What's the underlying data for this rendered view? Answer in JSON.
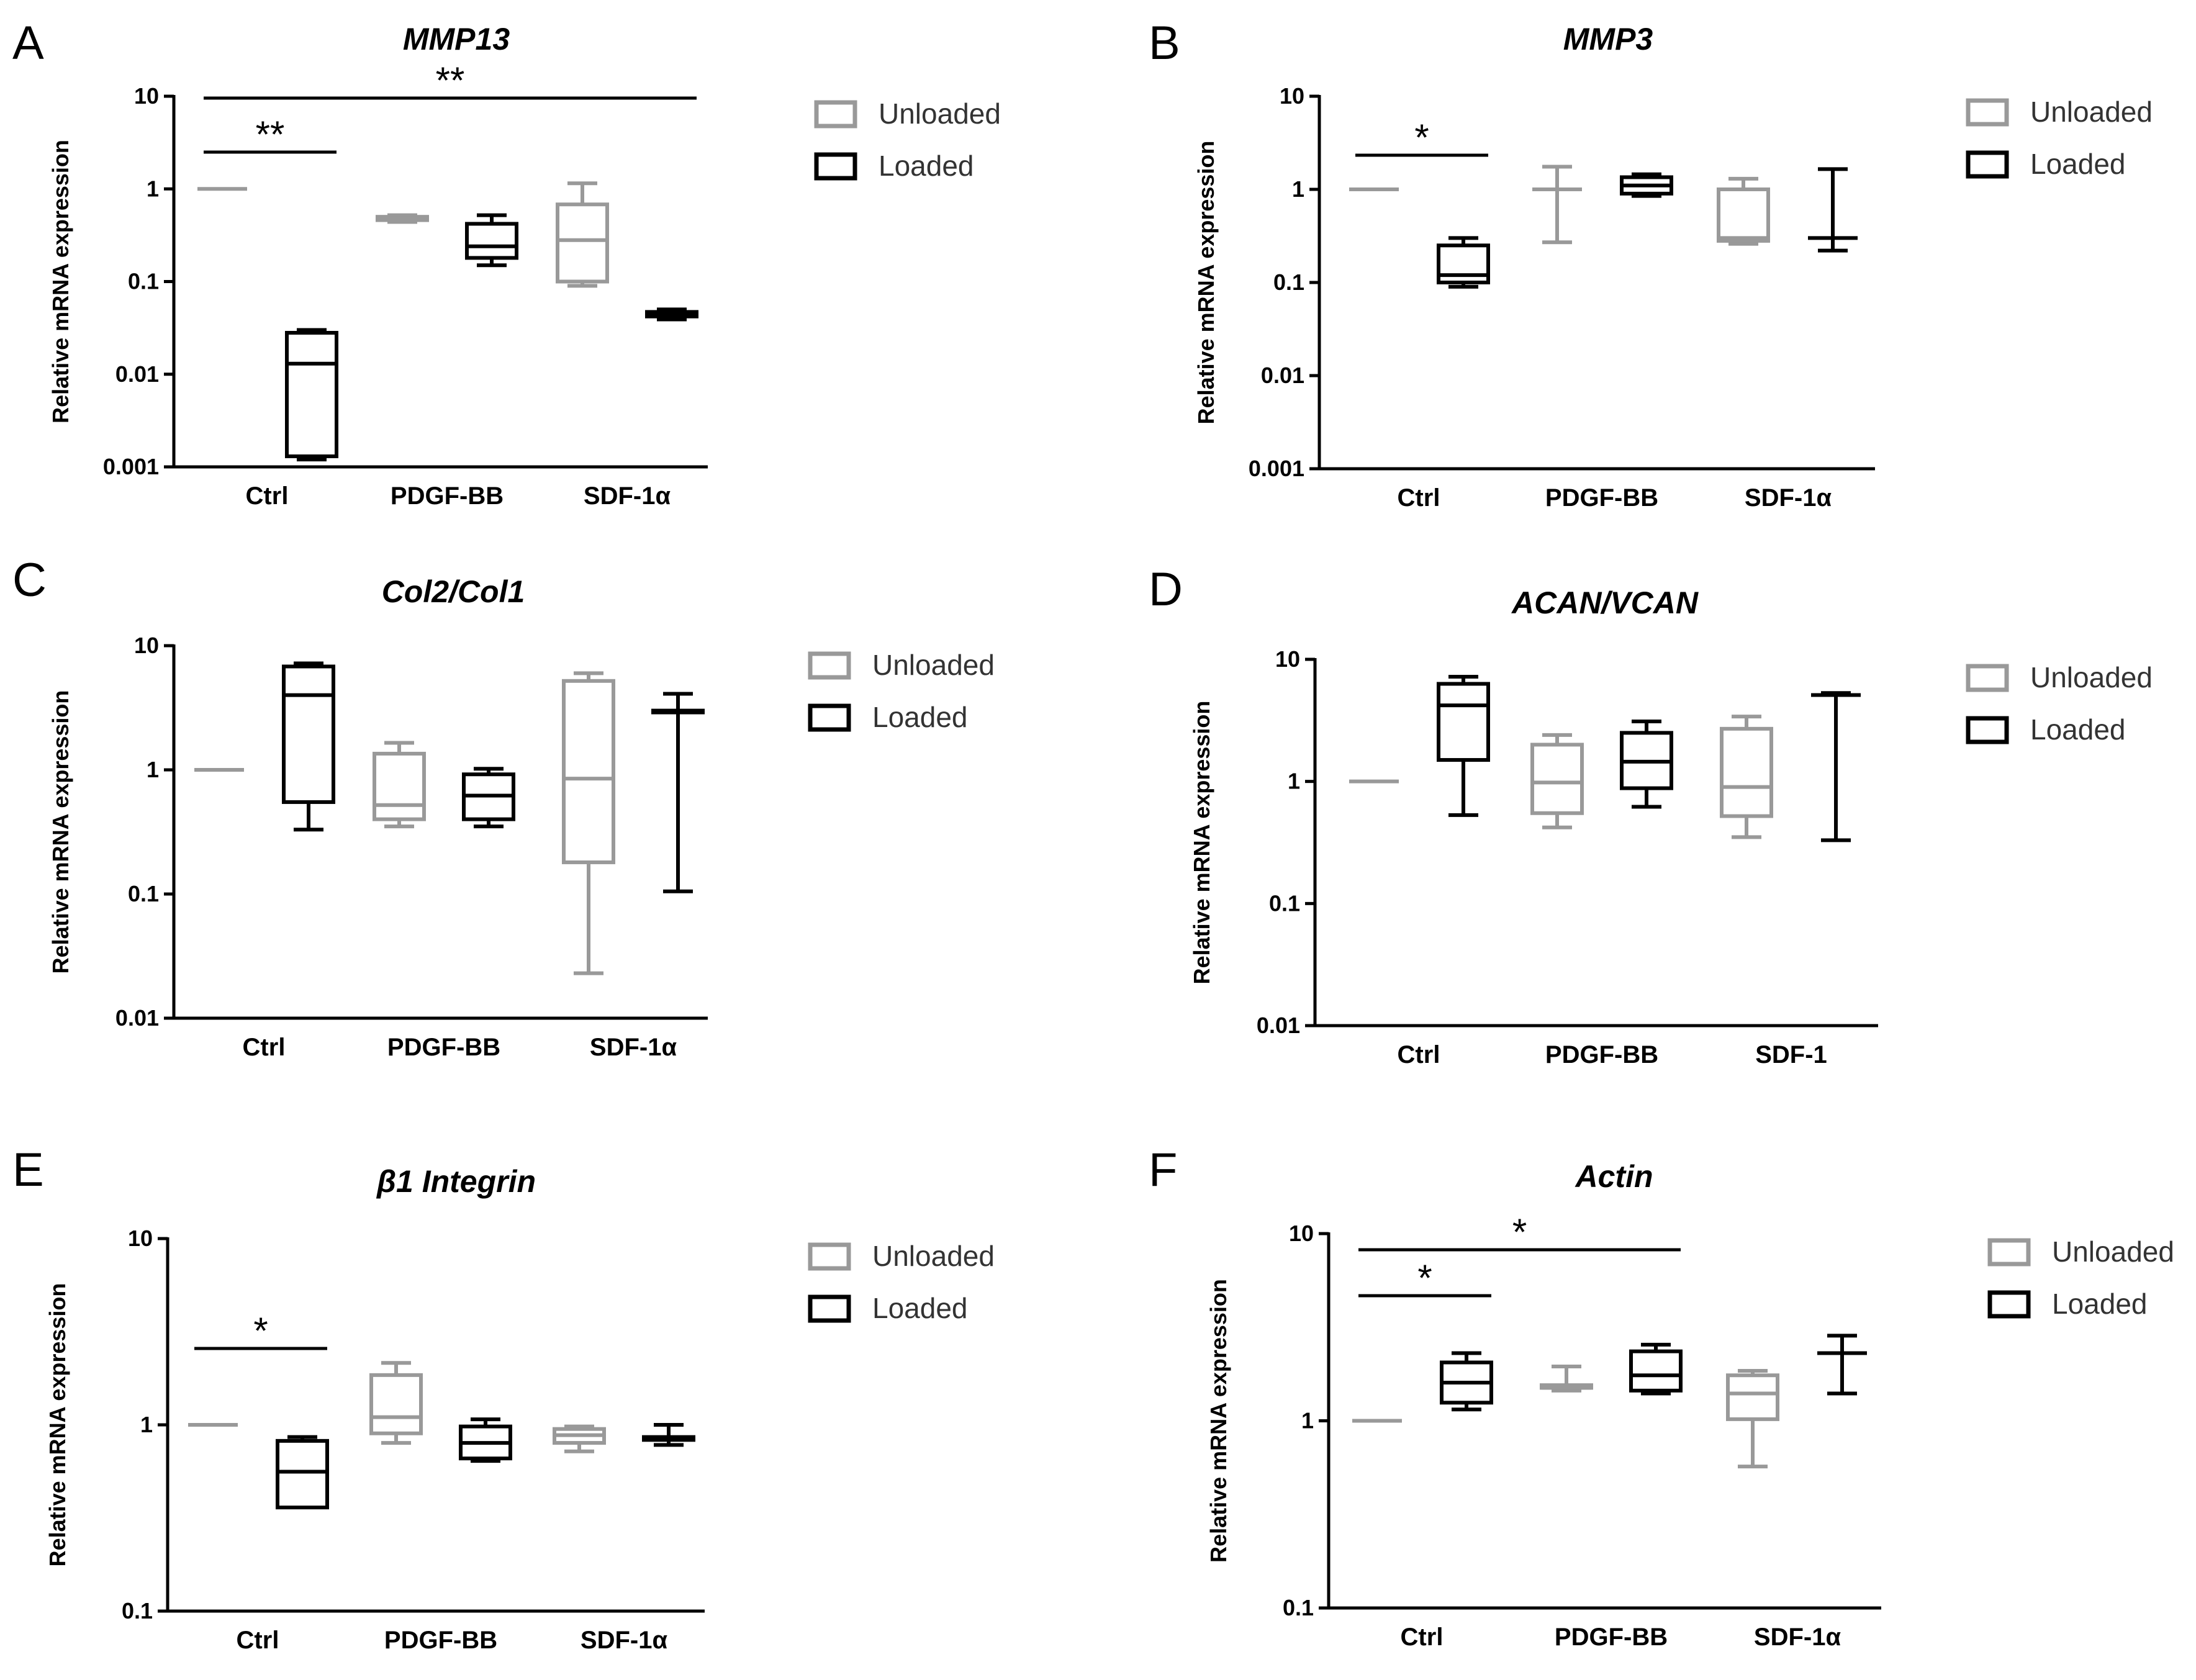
{
  "figure": {
    "colors": {
      "unloaded": "#999999",
      "loaded": "#000000",
      "axis": "#000000"
    },
    "legend": {
      "unloaded": "Unloaded",
      "loaded": "Loaded"
    }
  },
  "chart_data": [
    {
      "panel": "A",
      "type": "box",
      "title": "MMP13",
      "ylabel": "Relative mRNA expression",
      "yscale": "log",
      "ylim": [
        0.001,
        10
      ],
      "yticks": [
        "0.001",
        "0.01",
        "0.1",
        "1",
        "10"
      ],
      "categories": [
        "Ctrl",
        "PDGF-BB",
        "SDF-1α"
      ],
      "series": [
        {
          "name": "Unloaded",
          "boxes": [
            [
              1,
              1,
              1,
              1,
              1
            ],
            [
              0.44,
              0.46,
              0.48,
              0.5,
              0.52
            ],
            [
              0.09,
              0.1,
              0.28,
              0.68,
              1.15
            ]
          ]
        },
        {
          "name": "Loaded",
          "boxes": [
            [
              0.0012,
              0.0013,
              0.013,
              0.028,
              0.03
            ],
            [
              0.15,
              0.18,
              0.24,
              0.42,
              0.52
            ],
            [
              0.039,
              0.042,
              0.045,
              0.047,
              0.05
            ]
          ]
        }
      ],
      "significance": [
        {
          "label": "**",
          "from": "Ctrl",
          "to": "Ctrl",
          "level": 1
        },
        {
          "label": "**",
          "from": "Ctrl",
          "to": "SDF-1α",
          "level": 2
        }
      ]
    },
    {
      "panel": "B",
      "type": "box",
      "title": "MMP3",
      "ylabel": "Relative mRNA expression",
      "yscale": "log",
      "ylim": [
        0.001,
        10
      ],
      "yticks": [
        "0.001",
        "0.01",
        "0.1",
        "1",
        "10"
      ],
      "categories": [
        "Ctrl",
        "PDGF-BB",
        "SDF-1α"
      ],
      "series": [
        {
          "name": "Unloaded",
          "boxes": [
            [
              1,
              1,
              1,
              1,
              1
            ],
            [
              0.27,
              1,
              1,
              1,
              1.75
            ],
            [
              0.26,
              0.28,
              0.3,
              1,
              1.3
            ]
          ]
        },
        {
          "name": "Loaded",
          "boxes": [
            [
              0.09,
              0.1,
              0.12,
              0.25,
              0.3
            ],
            [
              0.85,
              0.9,
              1.1,
              1.35,
              1.45
            ],
            [
              0.22,
              0.3,
              0.3,
              0.3,
              1.65
            ]
          ]
        }
      ],
      "significance": [
        {
          "label": "*",
          "from": "Ctrl",
          "to": "Ctrl",
          "level": 1
        }
      ]
    },
    {
      "panel": "C",
      "type": "box",
      "title": "Col2/Col1",
      "ylabel": "Relative mRNA expression",
      "yscale": "log",
      "ylim": [
        0.01,
        10
      ],
      "yticks": [
        "0.01",
        "0.1",
        "1",
        "10"
      ],
      "categories": [
        "Ctrl",
        "PDGF-BB",
        "SDF-1α"
      ],
      "series": [
        {
          "name": "Unloaded",
          "boxes": [
            [
              1,
              1,
              1,
              1,
              1
            ],
            [
              0.35,
              0.4,
              0.52,
              1.35,
              1.65
            ],
            [
              0.023,
              0.18,
              0.85,
              5.2,
              6
            ]
          ]
        },
        {
          "name": "Loaded",
          "boxes": [
            [
              0.33,
              0.55,
              4,
              6.8,
              7.2
            ],
            [
              0.35,
              0.4,
              0.62,
              0.92,
              1.02
            ],
            [
              0.105,
              2.9,
              2.9,
              3,
              4.1
            ]
          ]
        }
      ],
      "significance": []
    },
    {
      "panel": "D",
      "type": "box",
      "title": "ACAN/VCAN",
      "ylabel": "Relative mRNA expression",
      "yscale": "log",
      "ylim": [
        0.01,
        10
      ],
      "yticks": [
        "0.01",
        "0.1",
        "1",
        "10"
      ],
      "categories": [
        "Ctrl",
        "PDGF-BB",
        "SDF-1"
      ],
      "series": [
        {
          "name": "Unloaded",
          "boxes": [
            [
              1,
              1,
              1,
              1,
              1
            ],
            [
              0.42,
              0.55,
              0.98,
              2,
              2.4
            ],
            [
              0.35,
              0.52,
              0.9,
              2.7,
              3.4
            ]
          ]
        },
        {
          "name": "Loaded",
          "boxes": [
            [
              0.53,
              1.5,
              4.2,
              6.3,
              7.2
            ],
            [
              0.62,
              0.88,
              1.45,
              2.5,
              3.1
            ],
            [
              0.33,
              5.1,
              5.1,
              5.2,
              5.3
            ]
          ]
        }
      ],
      "significance": []
    },
    {
      "panel": "E",
      "type": "box",
      "title": "β1 Integrin",
      "ylabel": "Relative mRNA expression",
      "yscale": "log",
      "ylim": [
        0.1,
        10
      ],
      "yticks": [
        "0.1",
        "1",
        "10"
      ],
      "categories": [
        "Ctrl",
        "PDGF-BB",
        "SDF-1α"
      ],
      "series": [
        {
          "name": "Unloaded",
          "boxes": [
            [
              1,
              1,
              1,
              1,
              1
            ],
            [
              0.8,
              0.9,
              1.1,
              1.85,
              2.15
            ],
            [
              0.72,
              0.8,
              0.88,
              0.95,
              0.98
            ]
          ]
        },
        {
          "name": "Loaded",
          "boxes": [
            [
              0.36,
              0.36,
              0.56,
              0.82,
              0.86
            ],
            [
              0.64,
              0.66,
              0.8,
              0.98,
              1.07
            ],
            [
              0.78,
              0.83,
              0.85,
              0.86,
              1
            ]
          ]
        }
      ],
      "significance": [
        {
          "label": "*",
          "from": "Ctrl",
          "to": "Ctrl",
          "level": 1
        }
      ]
    },
    {
      "panel": "F",
      "type": "box",
      "title": "Actin",
      "ylabel": "Relative mRNA expression",
      "yscale": "log",
      "ylim": [
        0.1,
        10
      ],
      "yticks": [
        "0.1",
        "1",
        "10"
      ],
      "categories": [
        "Ctrl",
        "PDGF-BB",
        "SDF-1α"
      ],
      "series": [
        {
          "name": "Unloaded",
          "boxes": [
            [
              1,
              1,
              1,
              1,
              1
            ],
            [
              1.45,
              1.5,
              1.5,
              1.55,
              1.95
            ],
            [
              0.57,
              1.02,
              1.4,
              1.75,
              1.85
            ]
          ]
        },
        {
          "name": "Loaded",
          "boxes": [
            [
              1.15,
              1.25,
              1.6,
              2.05,
              2.3
            ],
            [
              1.4,
              1.45,
              1.75,
              2.35,
              2.55
            ],
            [
              1.4,
              2.3,
              2.3,
              2.3,
              2.85
            ]
          ]
        }
      ],
      "significance": [
        {
          "label": "*",
          "from": "Ctrl",
          "to": "Ctrl",
          "level": 1
        },
        {
          "label": "*",
          "from": "Ctrl",
          "to": "PDGF-BB",
          "level": 2
        }
      ]
    }
  ]
}
